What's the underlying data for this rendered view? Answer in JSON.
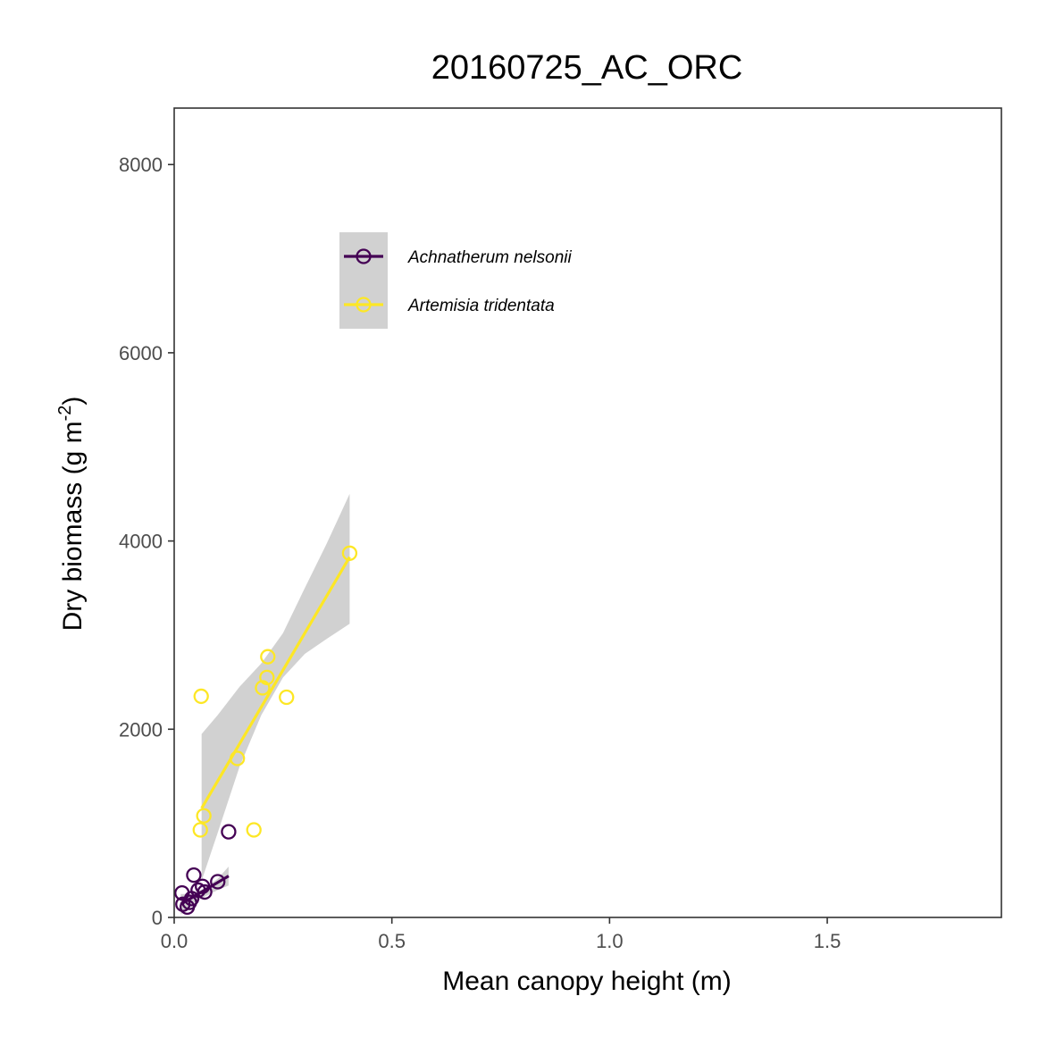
{
  "chart_data": {
    "type": "scatter",
    "title": "20160725_AC_ORC",
    "xlabel": "Mean canopy height (m)",
    "ylabel": {
      "text": "Dry biomass (g m",
      "superscript": "-2",
      "suffix": ")"
    },
    "xlim": [
      0,
      1.9
    ],
    "ylim": [
      0,
      8600
    ],
    "x_ticks": [
      0,
      0.5,
      1.0,
      1.5
    ],
    "x_tick_labels": [
      "0.0",
      "0.5",
      "1.0",
      "1.5"
    ],
    "y_ticks": [
      0,
      2000,
      4000,
      6000,
      8000
    ],
    "y_tick_labels": [
      "0",
      "2000",
      "4000",
      "6000",
      "8000"
    ],
    "grid": false,
    "legend_position": "top-left",
    "series": [
      {
        "name": "Achnatherum nelsonii",
        "color": "#440154",
        "points": [
          {
            "x": 0.018,
            "y": 260
          },
          {
            "x": 0.02,
            "y": 140
          },
          {
            "x": 0.03,
            "y": 110
          },
          {
            "x": 0.035,
            "y": 160
          },
          {
            "x": 0.04,
            "y": 200
          },
          {
            "x": 0.045,
            "y": 450
          },
          {
            "x": 0.055,
            "y": 290
          },
          {
            "x": 0.065,
            "y": 330
          },
          {
            "x": 0.07,
            "y": 270
          },
          {
            "x": 0.1,
            "y": 380
          },
          {
            "x": 0.125,
            "y": 910
          }
        ],
        "fit": {
          "x": [
            0.015,
            0.125
          ],
          "y": [
            140,
            440
          ]
        },
        "band": {
          "x": [
            0.015,
            0.04,
            0.07,
            0.1,
            0.125
          ],
          "upper": [
            250,
            250,
            310,
            410,
            540
          ],
          "lower": [
            30,
            140,
            220,
            290,
            340
          ]
        }
      },
      {
        "name": "Artemisia tridentata",
        "color": "#fde725",
        "points": [
          {
            "x": 0.06,
            "y": 930
          },
          {
            "x": 0.062,
            "y": 2350
          },
          {
            "x": 0.068,
            "y": 1080
          },
          {
            "x": 0.145,
            "y": 1690
          },
          {
            "x": 0.183,
            "y": 930
          },
          {
            "x": 0.203,
            "y": 2440
          },
          {
            "x": 0.213,
            "y": 2550
          },
          {
            "x": 0.215,
            "y": 2770
          },
          {
            "x": 0.258,
            "y": 2340
          },
          {
            "x": 0.403,
            "y": 3870
          }
        ],
        "fit": {
          "x": [
            0.063,
            0.403
          ],
          "y": [
            1160,
            3830
          ]
        },
        "band": {
          "x": [
            0.063,
            0.1,
            0.15,
            0.2,
            0.25,
            0.3,
            0.35,
            0.403
          ],
          "upper": [
            1950,
            2150,
            2450,
            2700,
            3020,
            3500,
            3970,
            4500
          ],
          "lower": [
            390,
            900,
            1600,
            2150,
            2550,
            2800,
            2960,
            3120
          ]
        }
      }
    ]
  }
}
